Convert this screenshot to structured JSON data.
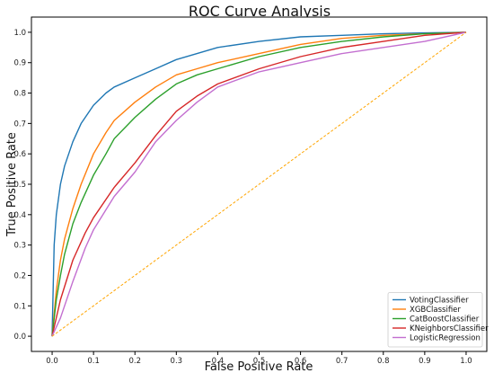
{
  "chart_data": {
    "type": "line",
    "title": "ROC Curve Analysis",
    "xlabel": "False Positive Rate",
    "ylabel": "True Positive Rate",
    "xlim": [
      -0.05,
      1.05
    ],
    "ylim": [
      -0.05,
      1.05
    ],
    "xticks": [
      "0.0",
      "0.1",
      "0.2",
      "0.3",
      "0.4",
      "0.5",
      "0.6",
      "0.7",
      "0.8",
      "0.9",
      "1.0"
    ],
    "yticks": [
      "0.0",
      "0.1",
      "0.2",
      "0.3",
      "0.4",
      "0.5",
      "0.6",
      "0.7",
      "0.8",
      "0.9",
      "1.0"
    ],
    "grid": false,
    "legend": "lower-right",
    "series": [
      {
        "name": "VotingClassifier",
        "color": "#1f77b4",
        "x": [
          0,
          0.005,
          0.01,
          0.02,
          0.03,
          0.05,
          0.07,
          0.1,
          0.13,
          0.15,
          0.2,
          0.25,
          0.3,
          0.35,
          0.4,
          0.5,
          0.6,
          0.7,
          0.8,
          0.9,
          1.0
        ],
        "y": [
          0,
          0.3,
          0.4,
          0.5,
          0.56,
          0.64,
          0.7,
          0.76,
          0.8,
          0.82,
          0.85,
          0.88,
          0.91,
          0.93,
          0.95,
          0.97,
          0.985,
          0.99,
          0.995,
          0.998,
          1.0
        ]
      },
      {
        "name": "XGBClassifier",
        "color": "#ff7f0e",
        "x": [
          0,
          0.01,
          0.02,
          0.03,
          0.05,
          0.07,
          0.1,
          0.13,
          0.15,
          0.2,
          0.25,
          0.3,
          0.35,
          0.4,
          0.5,
          0.6,
          0.7,
          0.8,
          0.9,
          1.0
        ],
        "y": [
          0,
          0.15,
          0.25,
          0.32,
          0.42,
          0.5,
          0.6,
          0.67,
          0.71,
          0.77,
          0.82,
          0.86,
          0.88,
          0.9,
          0.93,
          0.96,
          0.98,
          0.99,
          0.995,
          1.0
        ]
      },
      {
        "name": "CatBoostClassifier",
        "color": "#2ca02c",
        "x": [
          0,
          0.01,
          0.02,
          0.03,
          0.05,
          0.07,
          0.1,
          0.13,
          0.15,
          0.2,
          0.25,
          0.3,
          0.35,
          0.4,
          0.5,
          0.6,
          0.7,
          0.8,
          0.9,
          1.0
        ],
        "y": [
          0,
          0.12,
          0.2,
          0.27,
          0.37,
          0.44,
          0.53,
          0.6,
          0.65,
          0.72,
          0.78,
          0.83,
          0.86,
          0.88,
          0.92,
          0.95,
          0.97,
          0.985,
          0.995,
          1.0
        ]
      },
      {
        "name": "KNeighborsClassifier",
        "color": "#d62728",
        "x": [
          0,
          0.02,
          0.05,
          0.08,
          0.1,
          0.15,
          0.2,
          0.25,
          0.3,
          0.35,
          0.4,
          0.5,
          0.6,
          0.7,
          0.8,
          0.9,
          1.0
        ],
        "y": [
          0,
          0.12,
          0.25,
          0.34,
          0.39,
          0.49,
          0.57,
          0.66,
          0.74,
          0.79,
          0.83,
          0.88,
          0.92,
          0.95,
          0.97,
          0.99,
          1.0
        ]
      },
      {
        "name": "LogisticRegression",
        "color": "#c36fd0",
        "x": [
          0,
          0.02,
          0.05,
          0.08,
          0.1,
          0.15,
          0.2,
          0.25,
          0.3,
          0.35,
          0.4,
          0.5,
          0.6,
          0.7,
          0.8,
          0.9,
          1.0
        ],
        "y": [
          0,
          0.06,
          0.18,
          0.29,
          0.35,
          0.46,
          0.54,
          0.64,
          0.71,
          0.77,
          0.82,
          0.87,
          0.9,
          0.93,
          0.95,
          0.97,
          1.0
        ]
      },
      {
        "name": "",
        "color": "#ffa500",
        "dashed": true,
        "x": [
          0,
          1
        ],
        "y": [
          0,
          1
        ]
      }
    ]
  }
}
